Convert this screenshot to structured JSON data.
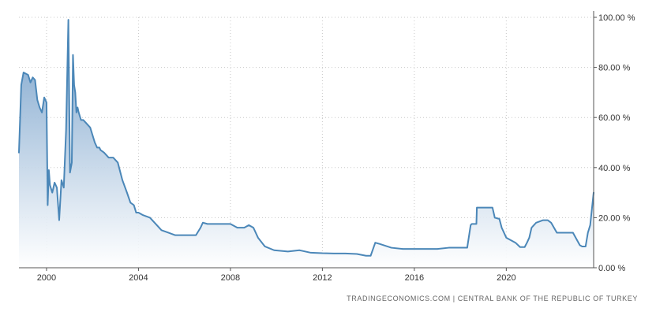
{
  "colors": {
    "line": "#4b87b8",
    "fill_top": "#6f9bc7",
    "fill_bottom": "#ffffff",
    "grid": "#c8c8c8",
    "axis": "#555555",
    "text": "#333333"
  },
  "source_note": "TRADINGECONOMICS.COM  |  CENTRAL BANK OF THE REPUBLIC OF TURKEY",
  "chart_data": {
    "type": "area",
    "title": "",
    "xlabel": "",
    "ylabel": "",
    "x_unit": "year",
    "xlim": [
      1998.8,
      2023.8
    ],
    "ylim": [
      0,
      100
    ],
    "y_ticks": [
      {
        "value": 0,
        "label": "0.00 %"
      },
      {
        "value": 20,
        "label": "20.00 %"
      },
      {
        "value": 40,
        "label": "40.00 %"
      },
      {
        "value": 60,
        "label": "60.00 %"
      },
      {
        "value": 80,
        "label": "80.00 %"
      },
      {
        "value": 100,
        "label": "100.00 %"
      }
    ],
    "x_ticks": [
      {
        "value": 2000,
        "label": "2000"
      },
      {
        "value": 2004,
        "label": "2004"
      },
      {
        "value": 2008,
        "label": "2008"
      },
      {
        "value": 2012,
        "label": "2012"
      },
      {
        "value": 2016,
        "label": "2016"
      },
      {
        "value": 2020,
        "label": "2020"
      }
    ],
    "grid": true,
    "legend": "none",
    "series": [
      {
        "x": [
          1998.8,
          1998.9,
          1999.0,
          1999.2,
          1999.3,
          1999.4,
          1999.5,
          1999.6,
          1999.7,
          1999.8,
          1999.9,
          2000.0,
          2000.05,
          2000.1,
          2000.15,
          2000.25,
          2000.35,
          2000.45,
          2000.55,
          2000.65,
          2000.75,
          2000.85,
          2000.95,
          2001.02,
          2001.1,
          2001.15,
          2001.2,
          2001.25,
          2001.3,
          2001.35,
          2001.4,
          2001.5,
          2001.6,
          2001.7,
          2001.9,
          2002.1,
          2002.2,
          2002.3,
          2002.35,
          2002.5,
          2002.7,
          2002.9,
          2003.1,
          2003.3,
          2003.5,
          2003.65,
          2003.8,
          2003.9,
          2004.0,
          2004.2,
          2004.5,
          2004.8,
          2005.0,
          2005.3,
          2005.6,
          2006.0,
          2006.5,
          2006.7,
          2006.8,
          2007.0,
          2007.5,
          2008.0,
          2008.3,
          2008.6,
          2008.8,
          2009.0,
          2009.2,
          2009.5,
          2009.9,
          2010.5,
          2011.0,
          2011.5,
          2012.0,
          2012.5,
          2013.0,
          2013.5,
          2013.9,
          2014.0,
          2014.1,
          2014.3,
          2014.5,
          2015.0,
          2015.5,
          2016.0,
          2016.5,
          2017.0,
          2017.5,
          2018.0,
          2018.3,
          2018.45,
          2018.5,
          2018.7,
          2018.72,
          2019.0,
          2019.4,
          2019.5,
          2019.7,
          2019.8,
          2020.0,
          2020.4,
          2020.6,
          2020.8,
          2020.9,
          2021.0,
          2021.1,
          2021.2,
          2021.3,
          2021.6,
          2021.8,
          2021.95,
          2022.2,
          2022.5,
          2022.9,
          2023.2,
          2023.3,
          2023.45,
          2023.55,
          2023.65,
          2023.8
        ],
        "y": [
          46,
          73,
          78,
          77,
          74,
          76,
          75,
          67,
          64,
          62,
          68,
          66,
          25,
          39,
          33,
          30,
          34,
          32,
          19,
          35,
          32,
          55,
          99,
          38,
          42,
          85,
          73,
          70,
          62,
          64,
          62,
          59,
          59,
          58,
          56,
          50,
          48,
          48,
          47,
          46,
          44,
          44,
          42,
          35,
          30,
          26,
          25,
          22,
          22,
          21,
          20,
          17,
          15,
          14,
          13,
          13,
          13,
          16,
          18,
          17.5,
          17.5,
          17.5,
          16,
          16,
          17,
          16,
          12,
          8.5,
          7,
          6.5,
          7,
          6,
          5.8,
          5.7,
          5.7,
          5.5,
          4.8,
          4.8,
          4.8,
          10,
          9.5,
          8,
          7.5,
          7.5,
          7.5,
          7.5,
          8,
          8,
          8,
          17,
          17.5,
          17.5,
          24,
          24,
          24,
          20,
          19.5,
          16,
          12,
          10,
          8.25,
          8.25,
          10,
          12,
          16,
          17,
          18,
          19,
          19,
          18,
          14,
          14,
          14,
          9,
          8.5,
          8.5,
          14,
          17,
          30
        ]
      }
    ]
  }
}
